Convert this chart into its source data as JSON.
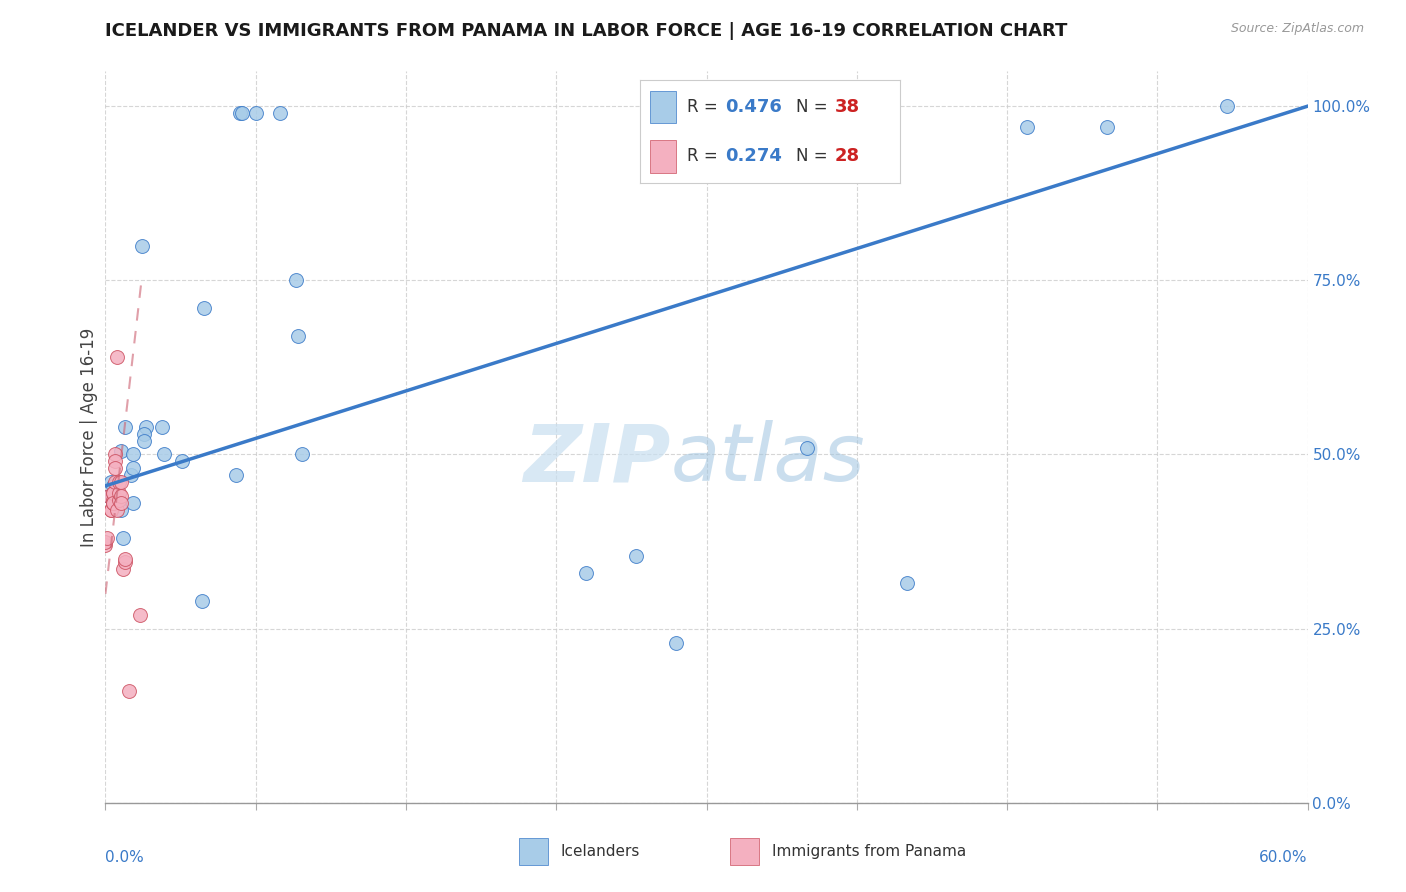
{
  "title": "ICELANDER VS IMMIGRANTS FROM PANAMA IN LABOR FORCE | AGE 16-19 CORRELATION CHART",
  "source": "Source: ZipAtlas.com",
  "ylabel": "In Labor Force | Age 16-19",
  "xlim": [
    0.0,
    0.6
  ],
  "ylim": [
    0.0,
    1.05
  ],
  "yticks": [
    0.0,
    0.25,
    0.5,
    0.75,
    1.0
  ],
  "ytick_labels": [
    "0.0%",
    "25.0%",
    "50.0%",
    "75.0%",
    "100.0%"
  ],
  "legend_icelanders": "Icelanders",
  "legend_panama": "Immigrants from Panama",
  "R_icelanders": "0.476",
  "N_icelanders": "38",
  "R_panama": "0.274",
  "N_panama": "28",
  "color_icelanders": "#a8cce8",
  "color_panama": "#f4b0c0",
  "trendline_color_icelanders": "#3a7ac8",
  "trendline_color_panama": "#cc6070",
  "watermark_zip": "ZIP",
  "watermark_atlas": "atlas",
  "icelanders_x": [
    0.008,
    0.01,
    0.014,
    0.02,
    0.002,
    0.003,
    0.004,
    0.004,
    0.005,
    0.008,
    0.009,
    0.013,
    0.014,
    0.014,
    0.018,
    0.019,
    0.019,
    0.028,
    0.029,
    0.038,
    0.048,
    0.049,
    0.065,
    0.067,
    0.068,
    0.075,
    0.087,
    0.095,
    0.096,
    0.098,
    0.24,
    0.265,
    0.285,
    0.35,
    0.4,
    0.46,
    0.5,
    0.56
  ],
  "icelanders_y": [
    0.505,
    0.54,
    0.5,
    0.54,
    0.44,
    0.46,
    0.455,
    0.43,
    0.43,
    0.42,
    0.38,
    0.47,
    0.48,
    0.43,
    0.8,
    0.53,
    0.52,
    0.54,
    0.5,
    0.49,
    0.29,
    0.71,
    0.47,
    0.99,
    0.99,
    0.99,
    0.99,
    0.75,
    0.67,
    0.5,
    0.33,
    0.355,
    0.23,
    0.51,
    0.315,
    0.97,
    0.97,
    1.0
  ],
  "panama_x": [
    0.0,
    0.0,
    0.001,
    0.002,
    0.003,
    0.003,
    0.004,
    0.004,
    0.004,
    0.004,
    0.004,
    0.005,
    0.005,
    0.005,
    0.005,
    0.006,
    0.006,
    0.007,
    0.007,
    0.007,
    0.008,
    0.008,
    0.008,
    0.009,
    0.01,
    0.01,
    0.012,
    0.017
  ],
  "panama_y": [
    0.37,
    0.375,
    0.38,
    0.44,
    0.42,
    0.42,
    0.435,
    0.445,
    0.43,
    0.445,
    0.43,
    0.5,
    0.49,
    0.48,
    0.46,
    0.64,
    0.42,
    0.435,
    0.445,
    0.46,
    0.44,
    0.46,
    0.43,
    0.335,
    0.345,
    0.35,
    0.16,
    0.27
  ]
}
